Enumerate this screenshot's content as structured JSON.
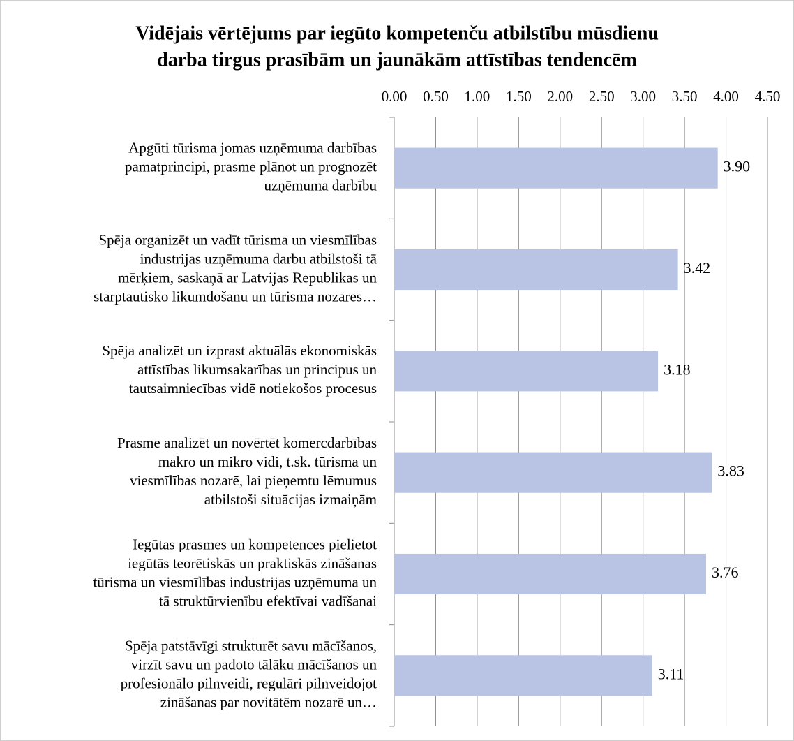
{
  "chart_data": {
    "type": "bar",
    "orientation": "horizontal",
    "title": [
      "Vidējais vērtējums par iegūto kompetenču atbilstību mūsdienu",
      "darba tirgus prasībām un jaunākām attīstības tendencēm"
    ],
    "categories": [
      [
        "Apgūti tūrisma jomas uzņēmuma darbības",
        "pamatprincipi, prasme plānot un prognozēt",
        "uzņēmuma darbību"
      ],
      [
        "Spēja organizēt un vadīt tūrisma un viesmīlības",
        "industrijas uzņēmuma darbu atbilstoši tā",
        "mērķiem, saskaņā ar Latvijas Republikas un",
        "starptautisko likumdošanu un tūrisma nozares…"
      ],
      [
        "Spēja analizēt un izprast aktuālās ekonomiskās",
        "attīstības likumsakarības un principus un",
        "tautsaimniecības vidē notiekošos procesus"
      ],
      [
        "Prasme analizēt un novērtēt komercdarbības",
        "makro un mikro vidi, t.sk. tūrisma un",
        "viesmīlības nozarē, lai pieņemtu lēmumus",
        "atbilstoši situācijas izmaiņām"
      ],
      [
        "Iegūtas prasmes un kompetences pielietot",
        "iegūtās teorētiskās un praktiskās zināšanas",
        "tūrisma un viesmīlības industrijas uzņēmuma un",
        "tā struktūrvienību efektīvai vadīšanai"
      ],
      [
        "Spēja patstāvīgi strukturēt savu mācīšanos,",
        "virzīt savu un padoto tālāku mācīšanos un",
        "profesionālo pilnveidi,  regulāri pilnveidojot",
        "zināšanas par novitātēm nozarē un…"
      ]
    ],
    "values": [
      3.9,
      3.42,
      3.18,
      3.83,
      3.76,
      3.11
    ],
    "value_labels": [
      "3.90",
      "3.42",
      "3.18",
      "3.83",
      "3.76",
      "3.11"
    ],
    "color": "#b9c3e3",
    "xlim": [
      0,
      4.5
    ],
    "xticks": [
      {
        "value": 0,
        "label": "0.00"
      },
      {
        "value": 0.5,
        "label": "0.50"
      },
      {
        "value": 1,
        "label": "1.00"
      },
      {
        "value": 1.5,
        "label": "1.50"
      },
      {
        "value": 2,
        "label": "2.00"
      },
      {
        "value": 2.5,
        "label": "2.50"
      },
      {
        "value": 3,
        "label": "3.00"
      },
      {
        "value": 3.5,
        "label": "3.50"
      },
      {
        "value": 4,
        "label": "4.00"
      },
      {
        "value": 4.5,
        "label": "4.50"
      }
    ],
    "grid": true
  }
}
